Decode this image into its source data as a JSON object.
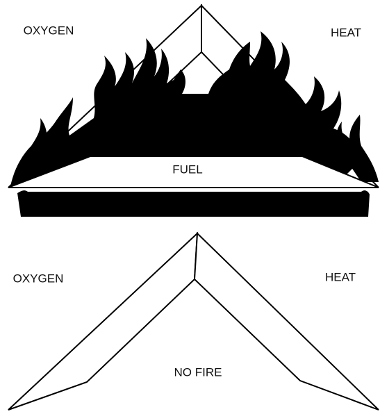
{
  "top": {
    "left_label": "OXYGEN",
    "right_label": "HEAT",
    "base_label": "FUEL"
  },
  "bottom": {
    "left_label": "OXYGEN",
    "right_label": "HEAT",
    "center_label": "NO FIRE"
  }
}
